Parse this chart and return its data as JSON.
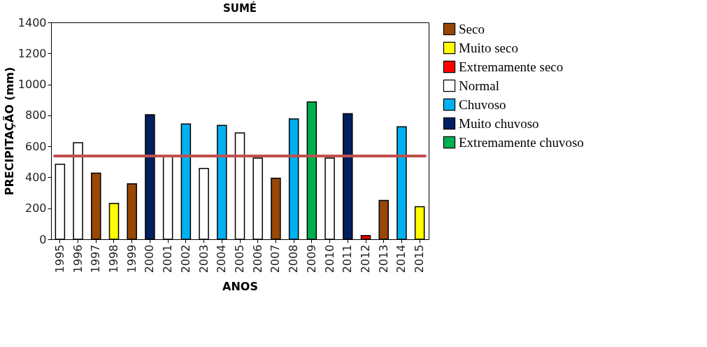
{
  "chart_data": {
    "type": "bar",
    "title": "SUMÉ",
    "xlabel": "ANOS",
    "ylabel": "PRECIPITAÇÃO (mm)",
    "categories": [
      "1995",
      "1996",
      "1997",
      "1998",
      "1999",
      "2000",
      "2001",
      "2002",
      "2003",
      "2004",
      "2005",
      "2006",
      "2007",
      "2008",
      "2009",
      "2010",
      "2011",
      "2012",
      "2013",
      "2014",
      "2015"
    ],
    "series": [
      {
        "name": "Seco",
        "color": "#974706",
        "values": [
          null,
          null,
          427,
          null,
          358,
          null,
          null,
          null,
          null,
          null,
          null,
          null,
          394,
          null,
          null,
          null,
          null,
          null,
          251,
          null,
          null
        ]
      },
      {
        "name": "Muito seco",
        "color": "#ffff00",
        "values": [
          null,
          null,
          null,
          231,
          null,
          null,
          null,
          null,
          null,
          null,
          null,
          null,
          null,
          null,
          null,
          null,
          null,
          null,
          null,
          null,
          210
        ]
      },
      {
        "name": "Extremamente seco",
        "color": "#ff0000",
        "values": [
          null,
          null,
          null,
          null,
          null,
          null,
          null,
          null,
          null,
          null,
          null,
          null,
          null,
          null,
          null,
          null,
          null,
          24,
          null,
          null,
          null
        ]
      },
      {
        "name": "Normal",
        "color": "#ffffff",
        "values": [
          484,
          623,
          null,
          null,
          null,
          null,
          537,
          null,
          457,
          null,
          686,
          524,
          null,
          null,
          null,
          524,
          null,
          null,
          null,
          null,
          null
        ]
      },
      {
        "name": "Chuvoso",
        "color": "#00b0f0",
        "values": [
          null,
          null,
          null,
          null,
          null,
          null,
          null,
          744,
          null,
          735,
          null,
          null,
          null,
          777,
          null,
          null,
          null,
          null,
          null,
          726,
          null
        ]
      },
      {
        "name": "Muito chuvoso",
        "color": "#002060",
        "values": [
          null,
          null,
          null,
          null,
          null,
          804,
          null,
          null,
          null,
          null,
          null,
          null,
          null,
          null,
          null,
          null,
          811,
          null,
          null,
          null,
          null
        ]
      },
      {
        "name": "Extremamente chuvoso",
        "color": "#00b050",
        "values": [
          null,
          null,
          null,
          null,
          null,
          null,
          null,
          null,
          null,
          null,
          null,
          null,
          null,
          null,
          886,
          null,
          null,
          null,
          null,
          null,
          null
        ]
      }
    ],
    "ylim": [
      0,
      1400
    ],
    "yticks": [
      0,
      200,
      400,
      600,
      800,
      1000,
      1200,
      1400
    ],
    "ref_lines": [
      {
        "axis": "y",
        "value": 537,
        "color": "#c0504d"
      }
    ],
    "grid": false,
    "legend": "right"
  }
}
